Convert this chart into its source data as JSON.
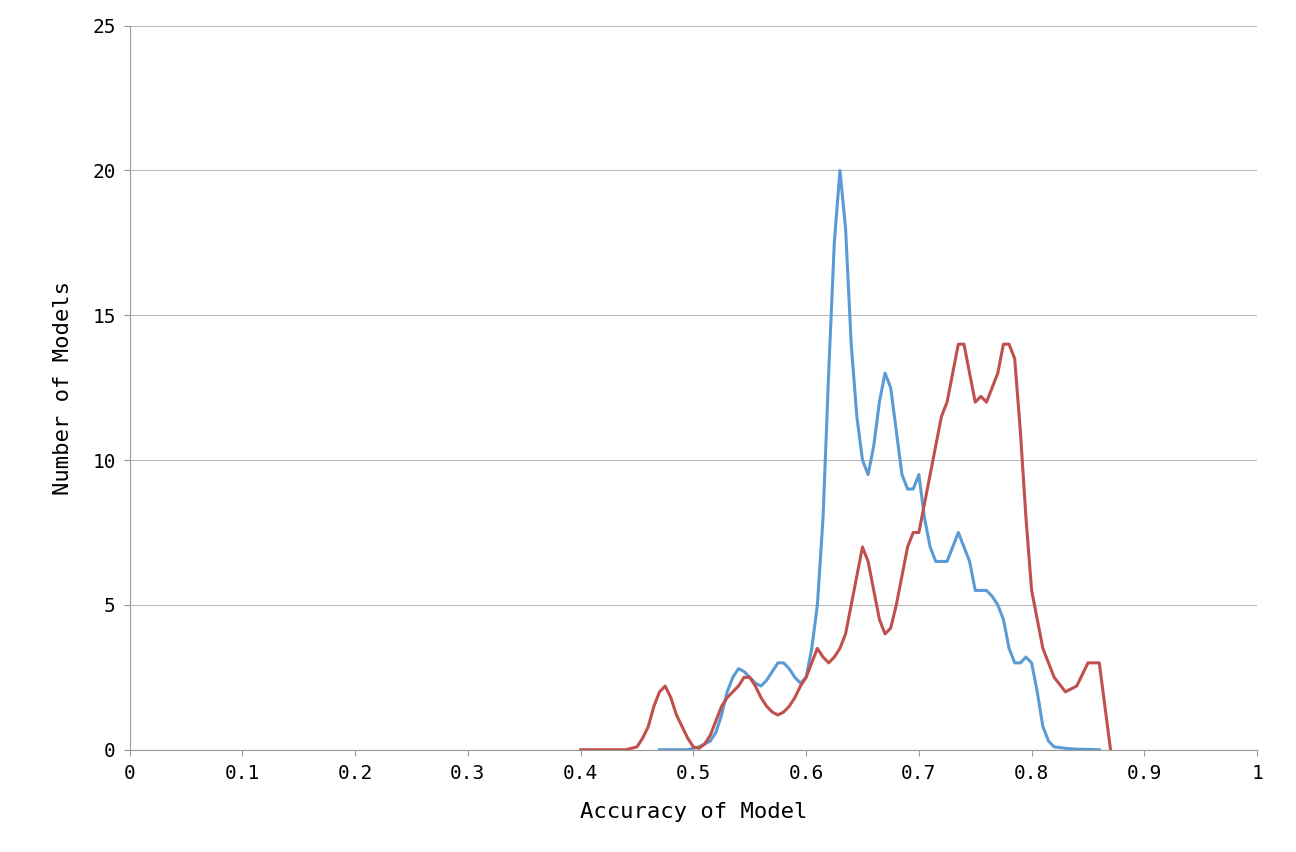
{
  "title": "",
  "xlabel": "Accuracy of Model",
  "ylabel": "Number of Models",
  "xlim": [
    0,
    1
  ],
  "ylim": [
    0,
    25
  ],
  "xticks": [
    0,
    0.1,
    0.2,
    0.3,
    0.4,
    0.5,
    0.6,
    0.7,
    0.8,
    0.9,
    1.0
  ],
  "yticks": [
    0,
    5,
    10,
    15,
    20,
    25
  ],
  "blue_x": [
    0.47,
    0.475,
    0.48,
    0.485,
    0.49,
    0.495,
    0.5,
    0.505,
    0.51,
    0.515,
    0.52,
    0.525,
    0.53,
    0.535,
    0.54,
    0.545,
    0.55,
    0.555,
    0.56,
    0.565,
    0.57,
    0.575,
    0.58,
    0.585,
    0.59,
    0.595,
    0.6,
    0.605,
    0.61,
    0.615,
    0.62,
    0.625,
    0.63,
    0.635,
    0.64,
    0.645,
    0.65,
    0.655,
    0.66,
    0.665,
    0.67,
    0.675,
    0.68,
    0.685,
    0.69,
    0.695,
    0.7,
    0.705,
    0.71,
    0.715,
    0.72,
    0.725,
    0.73,
    0.735,
    0.74,
    0.745,
    0.75,
    0.755,
    0.76,
    0.765,
    0.77,
    0.775,
    0.78,
    0.785,
    0.79,
    0.795,
    0.8,
    0.805,
    0.81,
    0.815,
    0.82,
    0.83,
    0.84,
    0.85,
    0.86
  ],
  "blue_y": [
    0.0,
    0.0,
    0.0,
    0.0,
    0.0,
    0.0,
    0.05,
    0.1,
    0.2,
    0.3,
    0.6,
    1.2,
    2.0,
    2.5,
    2.8,
    2.7,
    2.5,
    2.3,
    2.2,
    2.4,
    2.7,
    3.0,
    3.0,
    2.8,
    2.5,
    2.3,
    2.5,
    3.5,
    5.0,
    8.0,
    13.0,
    17.5,
    20.0,
    18.0,
    14.0,
    11.5,
    10.0,
    9.5,
    10.5,
    12.0,
    13.0,
    12.5,
    11.0,
    9.5,
    9.0,
    9.0,
    9.5,
    8.0,
    7.0,
    6.5,
    6.5,
    6.5,
    7.0,
    7.5,
    7.0,
    6.5,
    5.5,
    5.5,
    5.5,
    5.3,
    5.0,
    4.5,
    3.5,
    3.0,
    3.0,
    3.2,
    3.0,
    2.0,
    0.8,
    0.3,
    0.1,
    0.05,
    0.02,
    0.01,
    0.0
  ],
  "red_x": [
    0.4,
    0.41,
    0.42,
    0.43,
    0.44,
    0.45,
    0.455,
    0.46,
    0.465,
    0.47,
    0.475,
    0.48,
    0.485,
    0.49,
    0.495,
    0.5,
    0.505,
    0.51,
    0.515,
    0.52,
    0.525,
    0.53,
    0.535,
    0.54,
    0.545,
    0.55,
    0.555,
    0.56,
    0.565,
    0.57,
    0.575,
    0.58,
    0.585,
    0.59,
    0.595,
    0.6,
    0.605,
    0.61,
    0.615,
    0.62,
    0.625,
    0.63,
    0.635,
    0.64,
    0.645,
    0.65,
    0.655,
    0.66,
    0.665,
    0.67,
    0.675,
    0.68,
    0.685,
    0.69,
    0.695,
    0.7,
    0.705,
    0.71,
    0.715,
    0.72,
    0.725,
    0.73,
    0.735,
    0.74,
    0.745,
    0.75,
    0.755,
    0.76,
    0.765,
    0.77,
    0.775,
    0.78,
    0.785,
    0.79,
    0.795,
    0.8,
    0.81,
    0.82,
    0.83,
    0.84,
    0.85,
    0.86,
    0.87
  ],
  "red_y": [
    0.0,
    0.0,
    0.0,
    0.0,
    0.0,
    0.1,
    0.4,
    0.8,
    1.5,
    2.0,
    2.2,
    1.8,
    1.2,
    0.8,
    0.4,
    0.1,
    0.05,
    0.2,
    0.5,
    1.0,
    1.5,
    1.8,
    2.0,
    2.2,
    2.5,
    2.5,
    2.2,
    1.8,
    1.5,
    1.3,
    1.2,
    1.3,
    1.5,
    1.8,
    2.2,
    2.5,
    3.0,
    3.5,
    3.2,
    3.0,
    3.2,
    3.5,
    4.0,
    5.0,
    6.0,
    7.0,
    6.5,
    5.5,
    4.5,
    4.0,
    4.2,
    5.0,
    6.0,
    7.0,
    7.5,
    7.5,
    8.5,
    9.5,
    10.5,
    11.5,
    12.0,
    13.0,
    14.0,
    14.0,
    13.0,
    12.0,
    12.2,
    12.0,
    12.5,
    13.0,
    14.0,
    14.0,
    13.5,
    11.0,
    8.0,
    5.5,
    3.5,
    2.5,
    2.0,
    2.2,
    3.0,
    3.0,
    0.0
  ],
  "blue_color": "#5B9BD5",
  "red_color": "#C0504D",
  "background_color": "#FFFFFF",
  "grid_color": "#BBBBBB",
  "line_width": 2.2,
  "xlabel_fontsize": 16,
  "ylabel_fontsize": 16,
  "tick_fontsize": 14,
  "font_family": "monospace"
}
